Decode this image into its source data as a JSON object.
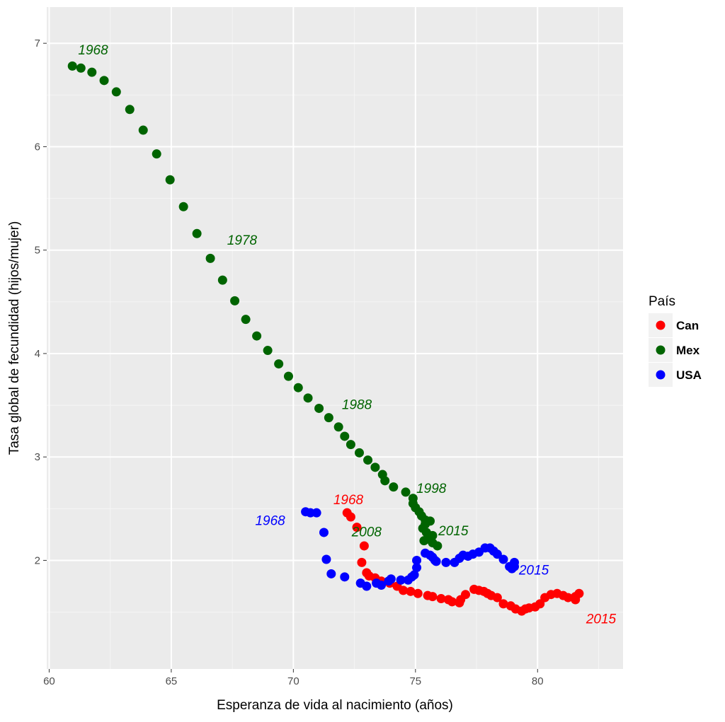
{
  "chart_data": {
    "type": "scatter",
    "xlabel": "Esperanza de vida al nacimiento (años)",
    "ylabel": "Tasa global de fecundidad (hijos/mujer)",
    "xlim": [
      59.9,
      83.5
    ],
    "ylim": [
      0.95,
      7.35
    ],
    "xticks": [
      "60",
      "65",
      "70",
      "75",
      "80"
    ],
    "yticks": [
      "2",
      "3",
      "4",
      "5",
      "6",
      "7"
    ],
    "grid": true,
    "legend": {
      "title": "País",
      "position": "right",
      "entries": [
        {
          "name": "Can",
          "color": "#ff0000"
        },
        {
          "name": "Mex",
          "color": "#006400"
        },
        {
          "name": "USA",
          "color": "#0000ff"
        }
      ]
    },
    "series": [
      {
        "name": "Mex",
        "color": "#006400",
        "points": [
          [
            60.95,
            6.78
          ],
          [
            61.3,
            6.76
          ],
          [
            61.75,
            6.72
          ],
          [
            62.25,
            6.64
          ],
          [
            62.75,
            6.53
          ],
          [
            63.3,
            6.36
          ],
          [
            63.85,
            6.16
          ],
          [
            64.4,
            5.93
          ],
          [
            64.95,
            5.68
          ],
          [
            65.5,
            5.42
          ],
          [
            66.05,
            5.16
          ],
          [
            66.6,
            4.92
          ],
          [
            67.1,
            4.71
          ],
          [
            67.6,
            4.51
          ],
          [
            68.05,
            4.33
          ],
          [
            68.5,
            4.17
          ],
          [
            68.95,
            4.03
          ],
          [
            69.4,
            3.9
          ],
          [
            69.8,
            3.78
          ],
          [
            70.2,
            3.67
          ],
          [
            70.6,
            3.57
          ],
          [
            71.05,
            3.47
          ],
          [
            71.45,
            3.38
          ],
          [
            71.85,
            3.29
          ],
          [
            72.1,
            3.2
          ],
          [
            72.35,
            3.12
          ],
          [
            72.7,
            3.04
          ],
          [
            73.05,
            2.97
          ],
          [
            73.35,
            2.9
          ],
          [
            73.65,
            2.83
          ],
          [
            73.75,
            2.77
          ],
          [
            74.1,
            2.71
          ],
          [
            74.6,
            2.66
          ],
          [
            74.9,
            2.6
          ],
          [
            74.9,
            2.55
          ],
          [
            75.0,
            2.51
          ],
          [
            75.15,
            2.47
          ],
          [
            75.25,
            2.43
          ],
          [
            75.4,
            2.39
          ],
          [
            75.6,
            2.38
          ],
          [
            75.4,
            2.35
          ],
          [
            75.3,
            2.31
          ],
          [
            75.45,
            2.27
          ],
          [
            75.7,
            2.24
          ],
          [
            75.6,
            2.2
          ],
          [
            75.35,
            2.19
          ],
          [
            75.7,
            2.17
          ],
          [
            75.9,
            2.14
          ]
        ],
        "labels": [
          {
            "text": "1968",
            "x": 61.8,
            "y": 6.94
          },
          {
            "text": "1978",
            "x": 67.9,
            "y": 5.1
          },
          {
            "text": "1988",
            "x": 72.6,
            "y": 3.51
          },
          {
            "text": "1998",
            "x": 75.65,
            "y": 2.7
          },
          {
            "text": "2008",
            "x": 73.0,
            "y": 2.28
          },
          {
            "text": "2015",
            "x": 76.55,
            "y": 2.29
          }
        ]
      },
      {
        "name": "Can",
        "color": "#ff0000",
        "points": [
          [
            72.2,
            2.46
          ],
          [
            72.35,
            2.42
          ],
          [
            72.6,
            2.32
          ],
          [
            72.9,
            2.14
          ],
          [
            72.8,
            1.98
          ],
          [
            73.0,
            1.88
          ],
          [
            73.1,
            1.85
          ],
          [
            73.35,
            1.83
          ],
          [
            73.6,
            1.8
          ],
          [
            73.95,
            1.78
          ],
          [
            74.25,
            1.75
          ],
          [
            74.5,
            1.71
          ],
          [
            74.8,
            1.7
          ],
          [
            75.1,
            1.68
          ],
          [
            75.5,
            1.66
          ],
          [
            75.7,
            1.65
          ],
          [
            76.05,
            1.63
          ],
          [
            76.35,
            1.62
          ],
          [
            76.5,
            1.6
          ],
          [
            76.8,
            1.59
          ],
          [
            76.85,
            1.62
          ],
          [
            77.05,
            1.67
          ],
          [
            77.4,
            1.72
          ],
          [
            77.6,
            1.71
          ],
          [
            77.8,
            1.7
          ],
          [
            77.95,
            1.68
          ],
          [
            78.1,
            1.66
          ],
          [
            78.35,
            1.64
          ],
          [
            78.6,
            1.58
          ],
          [
            78.9,
            1.56
          ],
          [
            79.1,
            1.53
          ],
          [
            79.35,
            1.51
          ],
          [
            79.5,
            1.53
          ],
          [
            79.65,
            1.54
          ],
          [
            79.9,
            1.55
          ],
          [
            80.1,
            1.58
          ],
          [
            80.3,
            1.64
          ],
          [
            80.55,
            1.67
          ],
          [
            80.8,
            1.68
          ],
          [
            81.05,
            1.66
          ],
          [
            81.25,
            1.64
          ],
          [
            81.55,
            1.62
          ],
          [
            81.7,
            1.68
          ],
          [
            81.55,
            1.65
          ]
        ],
        "labels": [
          {
            "text": "1968",
            "x": 72.25,
            "y": 2.59
          },
          {
            "text": "2015",
            "x": 82.6,
            "y": 1.44
          }
        ]
      },
      {
        "name": "USA",
        "color": "#0000ff",
        "points": [
          [
            70.5,
            2.47
          ],
          [
            70.7,
            2.46
          ],
          [
            70.95,
            2.46
          ],
          [
            71.25,
            2.27
          ],
          [
            71.35,
            2.01
          ],
          [
            71.55,
            1.87
          ],
          [
            72.1,
            1.84
          ],
          [
            72.75,
            1.78
          ],
          [
            73.0,
            1.75
          ],
          [
            73.4,
            1.78
          ],
          [
            73.6,
            1.76
          ],
          [
            73.9,
            1.8
          ],
          [
            74.0,
            1.82
          ],
          [
            74.4,
            1.81
          ],
          [
            74.7,
            1.81
          ],
          [
            74.85,
            1.84
          ],
          [
            74.95,
            1.86
          ],
          [
            75.05,
            1.93
          ],
          [
            75.05,
            2.0
          ],
          [
            75.4,
            2.07
          ],
          [
            75.6,
            2.05
          ],
          [
            75.7,
            2.03
          ],
          [
            75.8,
            2.0
          ],
          [
            75.85,
            1.99
          ],
          [
            76.25,
            1.98
          ],
          [
            76.6,
            1.98
          ],
          [
            76.8,
            2.02
          ],
          [
            76.95,
            2.05
          ],
          [
            77.15,
            2.04
          ],
          [
            77.35,
            2.06
          ],
          [
            77.6,
            2.08
          ],
          [
            77.85,
            2.12
          ],
          [
            78.05,
            2.12
          ],
          [
            78.2,
            2.09
          ],
          [
            78.35,
            2.06
          ],
          [
            78.6,
            2.01
          ],
          [
            78.85,
            1.94
          ],
          [
            78.95,
            1.92
          ],
          [
            79.05,
            1.94
          ],
          [
            79.05,
            1.98
          ]
        ],
        "labels": [
          {
            "text": "1968",
            "x": 69.05,
            "y": 2.39
          },
          {
            "text": "2015",
            "x": 79.85,
            "y": 1.91
          }
        ]
      }
    ]
  }
}
